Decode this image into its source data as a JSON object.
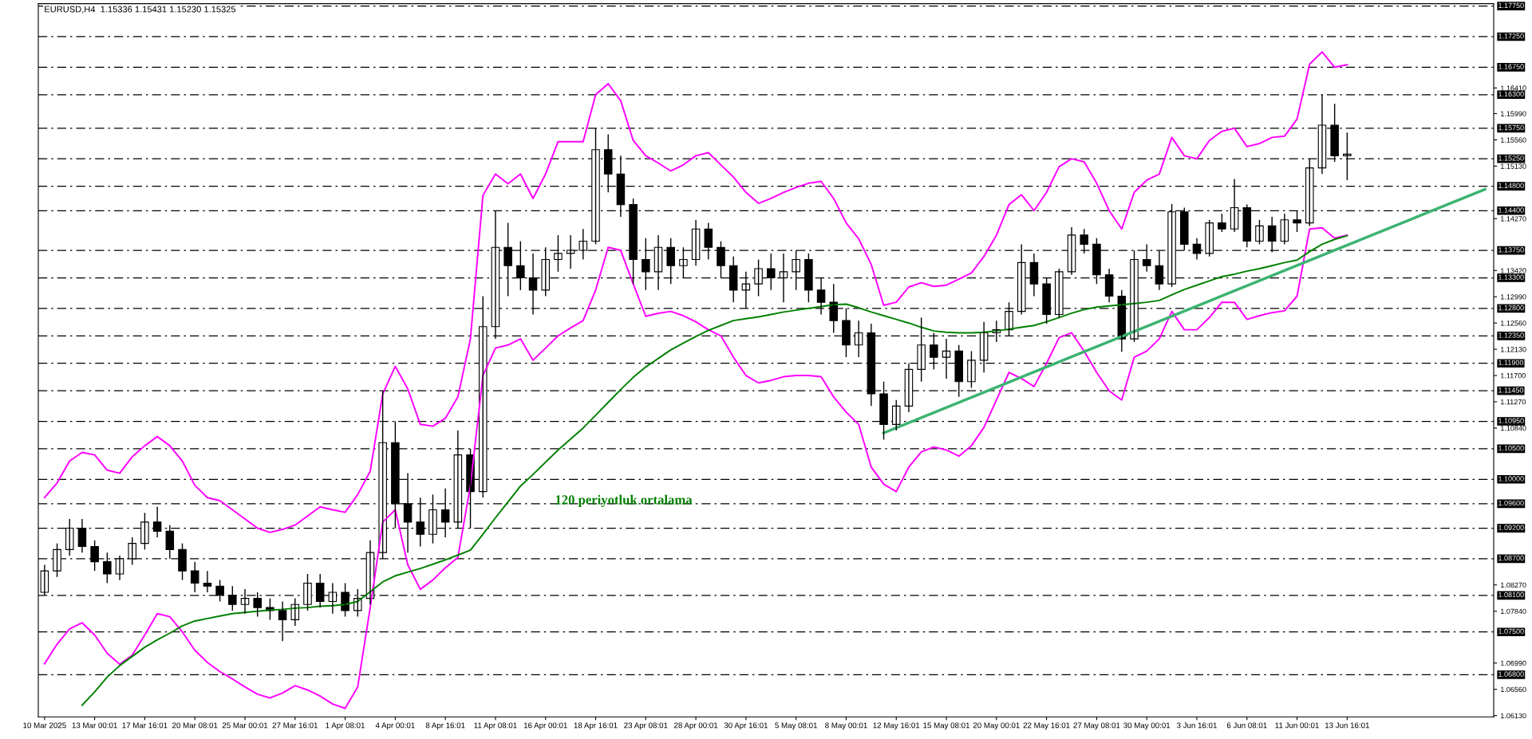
{
  "chart_data": {
    "type": "candlestick",
    "title": "EURUSD,H4  1.15336 1.15431 1.15230 1.15325",
    "categories": [
      "10 Mar 2025",
      null,
      null,
      null,
      "13 Mar 00:01",
      null,
      null,
      null,
      "17 Mar 16:01",
      null,
      null,
      null,
      "20 Mar 08:01",
      null,
      null,
      null,
      "25 Mar 00:01",
      null,
      null,
      null,
      "27 Mar 16:01",
      null,
      null,
      null,
      "1 Apr 08:01",
      null,
      null,
      null,
      "4 Apr 00:01",
      null,
      null,
      null,
      "8 Apr 16:01",
      null,
      null,
      null,
      "11 Apr 08:01",
      null,
      null,
      null,
      "16 Apr 00:01",
      null,
      null,
      null,
      "18 Apr 16:01",
      null,
      null,
      null,
      "23 Apr 08:01",
      null,
      null,
      null,
      "28 Apr 00:01",
      null,
      null,
      null,
      "30 Apr 16:01",
      null,
      null,
      null,
      "5 May 08:01",
      null,
      null,
      null,
      "8 May 00:01",
      null,
      null,
      null,
      "12 May 16:01",
      null,
      null,
      null,
      "15 May 08:01",
      null,
      null,
      null,
      "20 May 00:01",
      null,
      null,
      null,
      "22 May 16:01",
      null,
      null,
      null,
      "27 May 08:01",
      null,
      null,
      null,
      "30 May 00:01",
      null,
      null,
      null,
      "3 Jun 16:01",
      null,
      null,
      null,
      "6 Jun 08:01",
      null,
      null,
      null,
      "11 Jun 00:01",
      null,
      null,
      null,
      "13 Jun 16:01",
      null,
      null,
      null,
      null,
      null,
      null,
      null,
      null,
      null,
      null,
      null
    ],
    "ohlc": [
      [
        1.0815,
        1.086,
        1.081,
        1.085
      ],
      [
        1.085,
        1.0895,
        1.084,
        1.0885
      ],
      [
        1.0885,
        1.0935,
        1.0875,
        1.092
      ],
      [
        1.092,
        1.0935,
        1.088,
        1.089
      ],
      [
        1.089,
        1.09,
        1.085,
        1.0865
      ],
      [
        1.0865,
        1.088,
        1.083,
        1.0845
      ],
      [
        1.0845,
        1.0875,
        1.0835,
        1.087
      ],
      [
        1.087,
        1.0905,
        1.086,
        1.0895
      ],
      [
        1.0895,
        1.0945,
        1.0885,
        1.093
      ],
      [
        1.093,
        1.0955,
        1.0905,
        1.0915
      ],
      [
        1.0915,
        1.0925,
        1.087,
        1.0885
      ],
      [
        1.0885,
        1.0895,
        1.0835,
        1.085
      ],
      [
        1.085,
        1.0865,
        1.0815,
        1.083
      ],
      [
        1.083,
        1.085,
        1.0815,
        1.0825
      ],
      [
        1.0825,
        1.0835,
        1.08,
        1.081
      ],
      [
        1.081,
        1.0825,
        1.0785,
        1.0795
      ],
      [
        1.0795,
        1.082,
        1.078,
        1.0805
      ],
      [
        1.0805,
        1.0815,
        1.0775,
        1.079
      ],
      [
        1.079,
        1.0805,
        1.077,
        1.0785
      ],
      [
        1.0785,
        1.08,
        1.0735,
        1.077
      ],
      [
        1.077,
        1.0805,
        1.076,
        1.0795
      ],
      [
        1.0795,
        1.0845,
        1.0785,
        1.083
      ],
      [
        1.083,
        1.0845,
        1.079,
        1.08
      ],
      [
        1.08,
        1.083,
        1.078,
        1.0815
      ],
      [
        1.0815,
        1.083,
        1.0775,
        1.0785
      ],
      [
        1.0785,
        1.082,
        1.0775,
        1.0805
      ],
      [
        1.0805,
        1.09,
        1.0795,
        1.088
      ],
      [
        1.088,
        1.1145,
        1.087,
        1.106
      ],
      [
        1.106,
        1.1095,
        1.092,
        1.096
      ],
      [
        1.096,
        1.101,
        1.088,
        1.093
      ],
      [
        1.093,
        1.097,
        1.089,
        1.091
      ],
      [
        1.091,
        1.0975,
        1.0895,
        1.095
      ],
      [
        1.095,
        1.0985,
        1.0905,
        1.093
      ],
      [
        1.093,
        1.108,
        1.092,
        1.104
      ],
      [
        1.104,
        1.105,
        1.092,
        1.098
      ],
      [
        1.098,
        1.13,
        1.097,
        1.125
      ],
      [
        1.125,
        1.144,
        1.123,
        1.138
      ],
      [
        1.138,
        1.142,
        1.13,
        1.135
      ],
      [
        1.135,
        1.139,
        1.131,
        1.133
      ],
      [
        1.133,
        1.137,
        1.127,
        1.131
      ],
      [
        1.131,
        1.138,
        1.13,
        1.136
      ],
      [
        1.136,
        1.14,
        1.134,
        1.137
      ],
      [
        1.137,
        1.14,
        1.1345,
        1.1375
      ],
      [
        1.1375,
        1.141,
        1.136,
        1.139
      ],
      [
        1.139,
        1.1575,
        1.1385,
        1.154
      ],
      [
        1.154,
        1.1565,
        1.147,
        1.15
      ],
      [
        1.15,
        1.153,
        1.143,
        1.145
      ],
      [
        1.145,
        1.146,
        1.132,
        1.136
      ],
      [
        1.136,
        1.1395,
        1.131,
        1.134
      ],
      [
        1.134,
        1.14,
        1.131,
        1.138
      ],
      [
        1.138,
        1.1395,
        1.132,
        1.135
      ],
      [
        1.135,
        1.138,
        1.133,
        1.136
      ],
      [
        1.136,
        1.1425,
        1.135,
        1.141
      ],
      [
        1.141,
        1.142,
        1.136,
        1.138
      ],
      [
        1.138,
        1.139,
        1.133,
        1.135
      ],
      [
        1.135,
        1.1365,
        1.129,
        1.131
      ],
      [
        1.131,
        1.134,
        1.128,
        1.132
      ],
      [
        1.132,
        1.136,
        1.13,
        1.1345
      ],
      [
        1.1345,
        1.137,
        1.131,
        1.133
      ],
      [
        1.133,
        1.137,
        1.129,
        1.134
      ],
      [
        1.134,
        1.1375,
        1.131,
        1.136
      ],
      [
        1.136,
        1.137,
        1.129,
        1.131
      ],
      [
        1.131,
        1.133,
        1.127,
        1.129
      ],
      [
        1.129,
        1.132,
        1.124,
        1.126
      ],
      [
        1.126,
        1.128,
        1.12,
        1.122
      ],
      [
        1.122,
        1.126,
        1.12,
        1.124
      ],
      [
        1.124,
        1.1255,
        1.112,
        1.114
      ],
      [
        1.114,
        1.116,
        1.1065,
        1.109
      ],
      [
        1.109,
        1.113,
        1.108,
        1.112
      ],
      [
        1.112,
        1.119,
        1.111,
        1.118
      ],
      [
        1.118,
        1.1265,
        1.116,
        1.122
      ],
      [
        1.122,
        1.124,
        1.118,
        1.12
      ],
      [
        1.12,
        1.123,
        1.1165,
        1.121
      ],
      [
        1.121,
        1.122,
        1.1135,
        1.116
      ],
      [
        1.116,
        1.121,
        1.115,
        1.1195
      ],
      [
        1.1195,
        1.1258,
        1.1175,
        1.124
      ],
      [
        1.124,
        1.126,
        1.1225,
        1.1245
      ],
      [
        1.1245,
        1.129,
        1.1235,
        1.1275
      ],
      [
        1.1275,
        1.1385,
        1.127,
        1.1355
      ],
      [
        1.1355,
        1.137,
        1.13,
        1.132
      ],
      [
        1.132,
        1.133,
        1.1255,
        1.127
      ],
      [
        1.127,
        1.1345,
        1.1265,
        1.134
      ],
      [
        1.134,
        1.1413,
        1.1335,
        1.14
      ],
      [
        1.14,
        1.141,
        1.137,
        1.1385
      ],
      [
        1.1385,
        1.1395,
        1.132,
        1.1335
      ],
      [
        1.1335,
        1.1345,
        1.129,
        1.13
      ],
      [
        1.13,
        1.131,
        1.1209,
        1.123
      ],
      [
        1.123,
        1.1375,
        1.1225,
        1.136
      ],
      [
        1.136,
        1.1385,
        1.134,
        1.135
      ],
      [
        1.135,
        1.1374,
        1.131,
        1.132
      ],
      [
        1.132,
        1.1451,
        1.1315,
        1.1438
      ],
      [
        1.1438,
        1.1445,
        1.1375,
        1.1385
      ],
      [
        1.1385,
        1.1395,
        1.136,
        1.137
      ],
      [
        1.137,
        1.1425,
        1.1365,
        1.142
      ],
      [
        1.142,
        1.1435,
        1.1405,
        1.141
      ],
      [
        1.141,
        1.1492,
        1.1405,
        1.1445
      ],
      [
        1.1445,
        1.145,
        1.138,
        1.139
      ],
      [
        1.139,
        1.1425,
        1.1385,
        1.1415
      ],
      [
        1.1415,
        1.143,
        1.1372,
        1.139
      ],
      [
        1.139,
        1.1435,
        1.1385,
        1.1425
      ],
      [
        1.1425,
        1.144,
        1.1405,
        1.142
      ],
      [
        1.142,
        1.1525,
        1.1415,
        1.151
      ],
      [
        1.151,
        1.163,
        1.15,
        1.158
      ],
      [
        1.158,
        1.1615,
        1.152,
        1.153
      ],
      [
        1.153,
        1.1568,
        1.149,
        1.15325
      ],
      null,
      null,
      null,
      null,
      null,
      null,
      null,
      null,
      null,
      null,
      null
    ],
    "series": [
      {
        "type": "line",
        "color": "#ff00ff",
        "values": [
          1.097,
          1.0994,
          1.103,
          1.1044,
          1.104,
          1.1015,
          1.101,
          1.1037,
          1.1055,
          1.107,
          1.1055,
          1.103,
          1.099,
          1.097,
          1.0965,
          1.095,
          1.0935,
          1.092,
          1.0913,
          1.0918,
          1.0925,
          1.094,
          1.0955,
          1.095,
          1.0946,
          1.0975,
          1.1013,
          1.114,
          1.1185,
          1.1148,
          1.109,
          1.1087,
          1.11,
          1.1135,
          1.123,
          1.1465,
          1.15,
          1.1484,
          1.15,
          1.146,
          1.15,
          1.1553,
          1.1553,
          1.1553,
          1.163,
          1.1648,
          1.162,
          1.1555,
          1.153,
          1.1518,
          1.1505,
          1.1515,
          1.153,
          1.1535,
          1.1515,
          1.1495,
          1.147,
          1.1452,
          1.146,
          1.147,
          1.1478,
          1.1485,
          1.1488,
          1.146,
          1.142,
          1.1394,
          1.1352,
          1.1285,
          1.129,
          1.1315,
          1.1322,
          1.1316,
          1.1318,
          1.1328,
          1.1338,
          1.1365,
          1.14,
          1.145,
          1.1466,
          1.144,
          1.147,
          1.1512,
          1.1525,
          1.152,
          1.1485,
          1.144,
          1.141,
          1.147,
          1.149,
          1.15,
          1.156,
          1.153,
          1.1525,
          1.1555,
          1.157,
          1.1575,
          1.1545,
          1.155,
          1.156,
          1.1562,
          1.159,
          1.168,
          1.17,
          1.1675,
          1.1679,
          null,
          null,
          null,
          null,
          null,
          null,
          null,
          null,
          null,
          null,
          null
        ]
      },
      {
        "type": "line",
        "color": "#ff00ff",
        "values": [
          1.0698,
          1.073,
          1.0755,
          1.0765,
          1.0745,
          1.0715,
          1.0697,
          1.0712,
          1.0745,
          1.078,
          1.0775,
          1.075,
          1.072,
          1.07,
          1.0685,
          1.0673,
          1.066,
          1.0648,
          1.0642,
          1.065,
          1.0662,
          1.0655,
          1.0645,
          1.0632,
          1.0625,
          1.066,
          1.079,
          1.093,
          1.095,
          1.086,
          1.082,
          1.0835,
          1.0855,
          1.0872,
          1.099,
          1.117,
          1.1215,
          1.122,
          1.123,
          1.1195,
          1.1215,
          1.1235,
          1.1248,
          1.126,
          1.131,
          1.138,
          1.1375,
          1.132,
          1.1267,
          1.1272,
          1.1275,
          1.1268,
          1.1258,
          1.1245,
          1.1235,
          1.12,
          1.117,
          1.1158,
          1.1162,
          1.1168,
          1.117,
          1.117,
          1.1168,
          1.1135,
          1.111,
          1.109,
          1.102,
          1.0992,
          1.098,
          1.102,
          1.1045,
          1.1053,
          1.1048,
          1.1038,
          1.1055,
          1.1085,
          1.113,
          1.1175,
          1.1165,
          1.1152,
          1.119,
          1.1232,
          1.124,
          1.121,
          1.1175,
          1.1145,
          1.113,
          1.12,
          1.121,
          1.123,
          1.1275,
          1.1245,
          1.1245,
          1.1265,
          1.129,
          1.129,
          1.1262,
          1.1268,
          1.1273,
          1.1276,
          1.13,
          1.141,
          1.1412,
          1.1395,
          1.14,
          null,
          null,
          null,
          null,
          null,
          null,
          null,
          null,
          null,
          null,
          null
        ]
      },
      {
        "type": "line",
        "name": "120 periyotluk ortalama",
        "color": "#008000",
        "values": [
          null,
          null,
          null,
          1.063,
          1.0652,
          1.0676,
          1.0695,
          1.071,
          1.0725,
          1.0737,
          1.0748,
          1.076,
          1.0768,
          1.0772,
          1.0776,
          1.078,
          1.0782,
          1.0784,
          1.0786,
          1.0787,
          1.0789,
          1.079,
          1.0792,
          1.0793,
          1.0795,
          1.08,
          1.0816,
          1.0832,
          1.0842,
          1.0848,
          1.0854,
          1.0861,
          1.0868,
          1.0876,
          1.0884,
          1.091,
          1.0937,
          1.0963,
          1.0989,
          1.1008,
          1.1028,
          1.1048,
          1.1066,
          1.1084,
          1.1105,
          1.1126,
          1.1147,
          1.1167,
          1.1184,
          1.1198,
          1.1212,
          1.1223,
          1.1234,
          1.1244,
          1.1252,
          1.126,
          1.1263,
          1.1266,
          1.127,
          1.1274,
          1.1277,
          1.128,
          1.1283,
          1.1286,
          1.1287,
          1.1281,
          1.1274,
          1.1268,
          1.1262,
          1.1256,
          1.1249,
          1.1243,
          1.1241,
          1.124,
          1.124,
          1.1241,
          1.1243,
          1.1246,
          1.1249,
          1.1252,
          1.1258,
          1.1265,
          1.1272,
          1.1278,
          1.1282,
          1.1284,
          1.1286,
          1.1288,
          1.129,
          1.1293,
          1.1302,
          1.1311,
          1.1318,
          1.1325,
          1.1332,
          1.1336,
          1.1341,
          1.1345,
          1.135,
          1.1355,
          1.1359,
          1.1373,
          1.1385,
          1.1393,
          1.1399,
          null,
          null,
          null,
          null,
          null,
          null,
          null,
          null,
          null,
          null,
          null
        ]
      },
      {
        "type": "line",
        "color": "#3cb371",
        "values": [
          null,
          null,
          null,
          null,
          null,
          null,
          null,
          null,
          null,
          null,
          null,
          null,
          null,
          null,
          null,
          null,
          null,
          null,
          null,
          null,
          null,
          null,
          null,
          null,
          null,
          null,
          null,
          null,
          null,
          null,
          null,
          null,
          null,
          null,
          null,
          null,
          null,
          null,
          null,
          null,
          null,
          null,
          null,
          null,
          null,
          null,
          null,
          null,
          null,
          null,
          null,
          null,
          null,
          null,
          null,
          null,
          null,
          null,
          null,
          null,
          null,
          null,
          null,
          null,
          null,
          null,
          null,
          1.1076,
          null,
          null,
          null,
          null,
          null,
          null,
          null,
          null,
          null,
          null,
          null,
          null,
          null,
          null,
          null,
          null,
          null,
          null,
          null,
          null,
          null,
          null,
          null,
          null,
          null,
          null,
          null,
          null,
          null,
          null,
          null,
          null,
          null,
          null,
          null,
          null,
          null,
          null,
          null,
          null,
          null,
          null,
          null,
          null,
          null,
          null,
          null,
          1.1475
        ]
      }
    ],
    "ylim": [
      1.0611,
      1.1779
    ],
    "yticks": [
      {
        "value": 1.1641,
        "label": "1.16410"
      },
      {
        "value": 1.1599,
        "label": "1.15990"
      },
      {
        "value": 1.1556,
        "label": "1.15560"
      },
      {
        "value": 1.1513,
        "label": "1.15130"
      },
      {
        "value": 1.1427,
        "label": "1.14270"
      },
      {
        "value": 1.1342,
        "label": "1.13420"
      },
      {
        "value": 1.1299,
        "label": "1.12990"
      },
      {
        "value": 1.1256,
        "label": "1.12560"
      },
      {
        "value": 1.1213,
        "label": "1.12130"
      },
      {
        "value": 1.117,
        "label": "1.11700"
      },
      {
        "value": 1.1127,
        "label": "1.11270"
      },
      {
        "value": 1.1084,
        "label": "1.10840"
      },
      {
        "value": 1.0827,
        "label": "1.08270"
      },
      {
        "value": 1.0784,
        "label": "1.07840"
      },
      {
        "value": 1.0699,
        "label": "1.06990"
      },
      {
        "value": 1.0656,
        "label": "1.06560"
      },
      {
        "value": 1.0613,
        "label": "1.06130"
      }
    ],
    "ref_lines": [
      {
        "axis": "y",
        "value": 1.1775,
        "label": "1.17750",
        "color": "#000000",
        "line_style": "dashed"
      },
      {
        "axis": "y",
        "value": 1.1725,
        "label": "1.17250",
        "color": "#000000",
        "line_style": "dashed"
      },
      {
        "axis": "y",
        "value": 1.1675,
        "label": "1.16750",
        "color": "#000000",
        "line_style": "dashed"
      },
      {
        "axis": "y",
        "value": 1.163,
        "label": "1.16300",
        "color": "#000000",
        "line_style": "dashed"
      },
      {
        "axis": "y",
        "value": 1.1575,
        "label": "1.15750",
        "color": "#000000",
        "line_style": "dashed"
      },
      {
        "axis": "y",
        "value": 1.1525,
        "label": "1.15250",
        "color": "#000000",
        "line_style": "dashed"
      },
      {
        "axis": "y",
        "value": 1.148,
        "label": "1.14800",
        "color": "#000000",
        "line_style": "dashed"
      },
      {
        "axis": "y",
        "value": 1.144,
        "label": "1.14400",
        "color": "#000000",
        "line_style": "dashed"
      },
      {
        "axis": "y",
        "value": 1.1375,
        "label": "1.13750",
        "color": "#000000",
        "line_style": "dashed"
      },
      {
        "axis": "y",
        "value": 1.133,
        "label": "1.13300",
        "color": "#000000",
        "line_style": "dashed"
      },
      {
        "axis": "y",
        "value": 1.128,
        "label": "1.12800",
        "color": "#000000",
        "line_style": "dashed"
      },
      {
        "axis": "y",
        "value": 1.1235,
        "label": "1.12350",
        "color": "#000000",
        "line_style": "dashed"
      },
      {
        "axis": "y",
        "value": 1.119,
        "label": "1.11900",
        "color": "#000000",
        "line_style": "dashed"
      },
      {
        "axis": "y",
        "value": 1.1145,
        "label": "1.11450",
        "color": "#000000",
        "line_style": "dashed"
      },
      {
        "axis": "y",
        "value": 1.1095,
        "label": "1.10950",
        "color": "#000000",
        "line_style": "dashed"
      },
      {
        "axis": "y",
        "value": 1.105,
        "label": "1.10500",
        "color": "#000000",
        "line_style": "dashed"
      },
      {
        "axis": "y",
        "value": 1.1,
        "label": "1.10000",
        "color": "#000000",
        "line_style": "dashed"
      },
      {
        "axis": "y",
        "value": 1.096,
        "label": "1.09600",
        "color": "#000000",
        "line_style": "dashed"
      },
      {
        "axis": "y",
        "value": 1.092,
        "label": "1.09200",
        "color": "#000000",
        "line_style": "dashed"
      },
      {
        "axis": "y",
        "value": 1.087,
        "label": "1.08700",
        "color": "#000000",
        "line_style": "dashed"
      },
      {
        "axis": "y",
        "value": 1.081,
        "label": "1.08100",
        "color": "#000000",
        "line_style": "dashed"
      },
      {
        "axis": "y",
        "value": 1.075,
        "label": "1.07500",
        "color": "#000000",
        "line_style": "dashed"
      },
      {
        "axis": "y",
        "value": 1.068,
        "label": "1.06800",
        "color": "#000000",
        "line_style": "dashed"
      }
    ]
  }
}
